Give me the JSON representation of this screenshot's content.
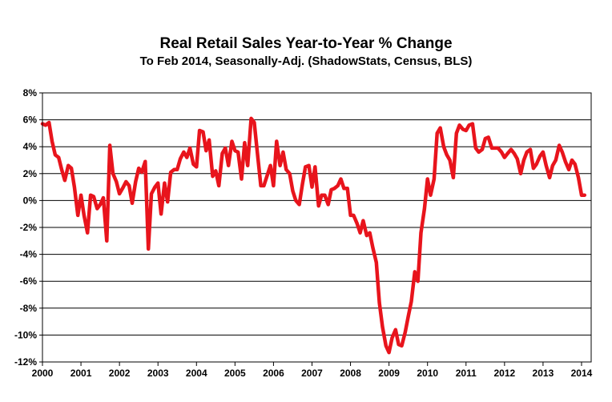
{
  "chart_data": {
    "type": "line",
    "title": "Real Retail Sales Year-to-Year %  Change",
    "subtitle": "To Feb 2014, Seasonally-Adj. (ShadowStats, Census, BLS)",
    "xlabel": "",
    "ylabel": "",
    "xlim": [
      2000,
      2014.25
    ],
    "ylim": [
      -12,
      8
    ],
    "y_ticks": [
      8,
      6,
      4,
      2,
      0,
      -2,
      -4,
      -6,
      -8,
      -10,
      -12
    ],
    "y_tick_labels": [
      "8%",
      "6%",
      "4%",
      "2%",
      "0%",
      "-2%",
      "-4%",
      "-6%",
      "-8%",
      "-10%",
      "-12%"
    ],
    "x_ticks": [
      2000,
      2001,
      2002,
      2003,
      2004,
      2005,
      2006,
      2007,
      2008,
      2009,
      2010,
      2011,
      2012,
      2013,
      2014
    ],
    "x_tick_labels": [
      "2000",
      "2001",
      "2002",
      "2003",
      "2004",
      "2005",
      "2006",
      "2007",
      "2008",
      "2009",
      "2010",
      "2011",
      "2012",
      "2013",
      "2014"
    ],
    "grid": true,
    "series": [
      {
        "name": "",
        "color": "#e8141c",
        "x": [
          2000.0,
          2000.08,
          2000.17,
          2000.25,
          2000.33,
          2000.42,
          2000.5,
          2000.58,
          2000.67,
          2000.75,
          2000.83,
          2000.92,
          2001.0,
          2001.08,
          2001.17,
          2001.25,
          2001.33,
          2001.42,
          2001.5,
          2001.58,
          2001.67,
          2001.75,
          2001.83,
          2001.92,
          2002.0,
          2002.08,
          2002.17,
          2002.25,
          2002.33,
          2002.42,
          2002.5,
          2002.58,
          2002.67,
          2002.75,
          2002.83,
          2002.92,
          2003.0,
          2003.08,
          2003.17,
          2003.25,
          2003.33,
          2003.42,
          2003.5,
          2003.58,
          2003.67,
          2003.75,
          2003.83,
          2003.92,
          2004.0,
          2004.08,
          2004.17,
          2004.25,
          2004.33,
          2004.42,
          2004.5,
          2004.58,
          2004.67,
          2004.75,
          2004.83,
          2004.92,
          2005.0,
          2005.08,
          2005.17,
          2005.25,
          2005.33,
          2005.42,
          2005.5,
          2005.58,
          2005.67,
          2005.75,
          2005.83,
          2005.92,
          2006.0,
          2006.08,
          2006.17,
          2006.25,
          2006.33,
          2006.42,
          2006.5,
          2006.58,
          2006.67,
          2006.75,
          2006.83,
          2006.92,
          2007.0,
          2007.08,
          2007.17,
          2007.25,
          2007.33,
          2007.42,
          2007.5,
          2007.58,
          2007.67,
          2007.75,
          2007.83,
          2007.92,
          2008.0,
          2008.08,
          2008.17,
          2008.25,
          2008.33,
          2008.42,
          2008.5,
          2008.58,
          2008.67,
          2008.75,
          2008.83,
          2008.92,
          2009.0,
          2009.08,
          2009.17,
          2009.25,
          2009.33,
          2009.42,
          2009.5,
          2009.58,
          2009.67,
          2009.75,
          2009.83,
          2009.92,
          2010.0,
          2010.08,
          2010.17,
          2010.25,
          2010.33,
          2010.42,
          2010.5,
          2010.58,
          2010.67,
          2010.75,
          2010.83,
          2010.92,
          2011.0,
          2011.08,
          2011.17,
          2011.25,
          2011.33,
          2011.42,
          2011.5,
          2011.58,
          2011.67,
          2011.75,
          2011.83,
          2011.92,
          2012.0,
          2012.08,
          2012.17,
          2012.25,
          2012.33,
          2012.42,
          2012.5,
          2012.58,
          2012.67,
          2012.75,
          2012.83,
          2012.92,
          2013.0,
          2013.08,
          2013.17,
          2013.25,
          2013.33,
          2013.42,
          2013.5,
          2013.58,
          2013.67,
          2013.75,
          2013.83,
          2013.92,
          2014.0,
          2014.08
        ],
        "values": [
          5.7,
          5.6,
          5.8,
          4.4,
          3.4,
          3.2,
          2.3,
          1.5,
          2.6,
          2.4,
          1.0,
          -1.1,
          0.4,
          -1.1,
          -2.4,
          0.4,
          0.3,
          -0.6,
          -0.3,
          0.2,
          -3.0,
          4.1,
          2.0,
          1.4,
          0.5,
          0.9,
          1.4,
          1.1,
          -0.2,
          1.4,
          2.4,
          2.1,
          2.9,
          -3.6,
          0.5,
          1.0,
          1.3,
          -1.0,
          1.3,
          -0.1,
          2.1,
          2.3,
          2.3,
          3.1,
          3.6,
          3.2,
          3.9,
          2.7,
          2.5,
          5.2,
          5.1,
          3.7,
          4.5,
          1.8,
          2.2,
          1.1,
          3.5,
          3.9,
          2.6,
          4.4,
          3.7,
          3.6,
          1.6,
          4.3,
          2.6,
          6.1,
          5.8,
          3.6,
          1.1,
          1.1,
          1.8,
          2.6,
          1.1,
          4.4,
          2.6,
          3.6,
          2.3,
          2.0,
          0.7,
          0.0,
          -0.3,
          1.2,
          2.5,
          2.6,
          1.0,
          2.5,
          -0.4,
          0.4,
          0.4,
          -0.3,
          0.8,
          0.9,
          1.1,
          1.6,
          0.9,
          0.9,
          -1.1,
          -1.1,
          -1.7,
          -2.4,
          -1.5,
          -2.6,
          -2.4,
          -3.5,
          -4.6,
          -7.6,
          -9.4,
          -10.8,
          -11.3,
          -10.2,
          -9.6,
          -10.7,
          -10.8,
          -9.8,
          -8.6,
          -7.5,
          -5.3,
          -6.0,
          -2.4,
          -0.6,
          1.6,
          0.4,
          1.6,
          5.0,
          5.4,
          4.0,
          3.4,
          3.0,
          1.7,
          5.0,
          5.6,
          5.3,
          5.2,
          5.6,
          5.7,
          3.9,
          3.6,
          3.8,
          4.6,
          4.7,
          3.9,
          3.9,
          3.9,
          3.6,
          3.2,
          3.5,
          3.8,
          3.5,
          3.1,
          2.0,
          3.0,
          3.6,
          3.8,
          2.4,
          2.7,
          3.3,
          3.6,
          2.6,
          1.7,
          2.6,
          3.0,
          4.1,
          3.6,
          2.9,
          2.3,
          3.0,
          2.7,
          1.7,
          0.4,
          0.4
        ]
      }
    ]
  }
}
